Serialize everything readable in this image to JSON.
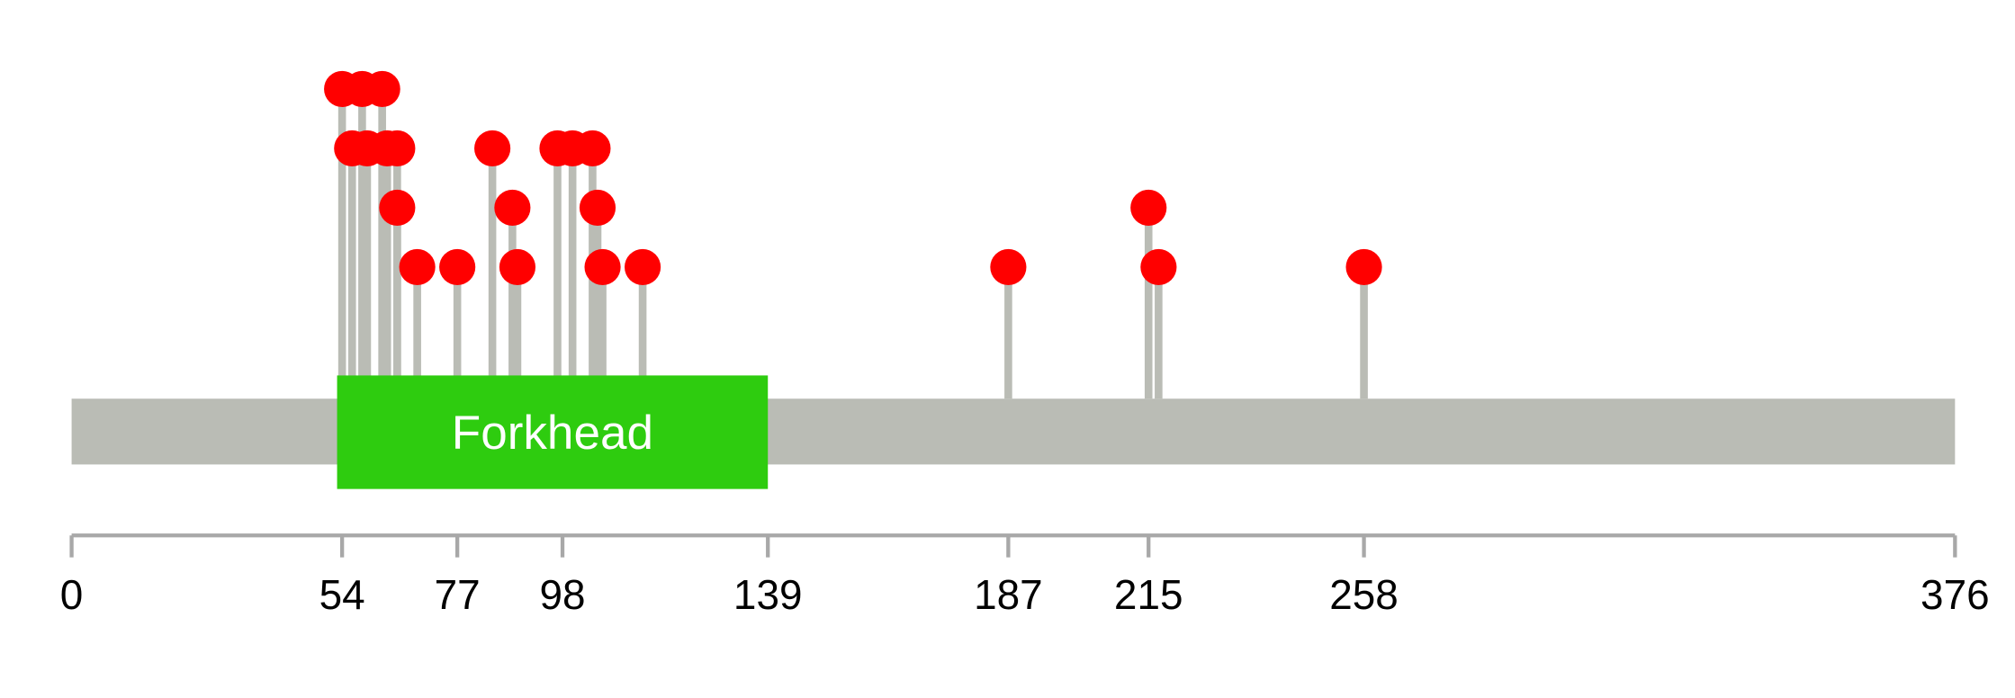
{
  "chart_data": {
    "type": "lollipop",
    "protein_length": 376,
    "colors": {
      "backbone": "#babcb5",
      "domain": "#2ecc0f",
      "marker": "#ff0000",
      "stem": "#babcb5",
      "axis": "#a8a8a8"
    },
    "domains": [
      {
        "name": "Forkhead",
        "start": 53,
        "end": 139
      }
    ],
    "axis_ticks": [
      0,
      54,
      77,
      98,
      139,
      187,
      215,
      258,
      376
    ],
    "mutations": [
      {
        "position": 54,
        "count": 4
      },
      {
        "position": 58,
        "count": 4
      },
      {
        "position": 62,
        "count": 4
      },
      {
        "position": 56,
        "count": 3
      },
      {
        "position": 59,
        "count": 3
      },
      {
        "position": 63,
        "count": 3
      },
      {
        "position": 65,
        "count": 3
      },
      {
        "position": 84,
        "count": 3
      },
      {
        "position": 97,
        "count": 3
      },
      {
        "position": 100,
        "count": 3
      },
      {
        "position": 104,
        "count": 3
      },
      {
        "position": 65,
        "count": 2
      },
      {
        "position": 88,
        "count": 2
      },
      {
        "position": 105,
        "count": 2
      },
      {
        "position": 215,
        "count": 2
      },
      {
        "position": 69,
        "count": 1
      },
      {
        "position": 77,
        "count": 1
      },
      {
        "position": 89,
        "count": 1
      },
      {
        "position": 106,
        "count": 1
      },
      {
        "position": 114,
        "count": 1
      },
      {
        "position": 187,
        "count": 1
      },
      {
        "position": 217,
        "count": 1
      },
      {
        "position": 258,
        "count": 1
      }
    ]
  }
}
